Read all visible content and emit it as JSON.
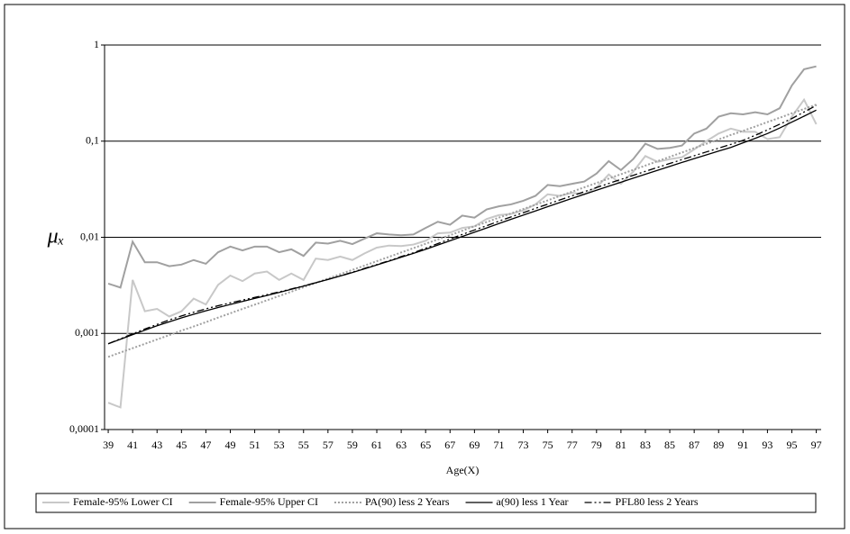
{
  "chart_data": {
    "type": "line",
    "x_label": "Age(X)",
    "y_label": "μₓ",
    "yscale": "log",
    "grid": true,
    "legend": "bottom",
    "x": [
      39,
      40,
      41,
      42,
      43,
      44,
      45,
      46,
      47,
      48,
      49,
      50,
      51,
      52,
      53,
      54,
      55,
      56,
      57,
      58,
      59,
      60,
      61,
      62,
      63,
      64,
      65,
      66,
      67,
      68,
      69,
      70,
      71,
      72,
      73,
      74,
      75,
      76,
      77,
      78,
      79,
      80,
      81,
      82,
      83,
      84,
      85,
      86,
      87,
      88,
      89,
      90,
      91,
      92,
      93,
      94,
      95,
      96,
      97
    ],
    "xlim": [
      38.7,
      97.4
    ],
    "xticks": [
      39,
      41,
      43,
      45,
      47,
      49,
      51,
      53,
      55,
      57,
      59,
      61,
      63,
      65,
      67,
      69,
      71,
      73,
      75,
      77,
      79,
      81,
      83,
      85,
      87,
      89,
      91,
      93,
      95,
      97
    ],
    "ylim": [
      0.0001,
      1
    ],
    "yticks": [
      {
        "value": 0.0001,
        "label": "0,0001"
      },
      {
        "value": 0.001,
        "label": "0,001"
      },
      {
        "value": 0.01,
        "label": "0,01"
      },
      {
        "value": 0.1,
        "label": "0,1"
      },
      1
    ],
    "series": [
      {
        "name": "Female-95% Lower CI",
        "color": "#c8c8c8",
        "dash": "solid",
        "values": [
          0.00019,
          0.00017,
          0.0036,
          0.0017,
          0.0018,
          0.0015,
          0.0017,
          0.0023,
          0.002,
          0.0032,
          0.004,
          0.0035,
          0.0042,
          0.0044,
          0.0036,
          0.0042,
          0.0036,
          0.006,
          0.0058,
          0.0063,
          0.0058,
          0.0068,
          0.0078,
          0.0082,
          0.0081,
          0.0084,
          0.0092,
          0.011,
          0.0112,
          0.0125,
          0.013,
          0.0155,
          0.017,
          0.0175,
          0.019,
          0.022,
          0.028,
          0.027,
          0.029,
          0.028,
          0.033,
          0.045,
          0.036,
          0.048,
          0.07,
          0.061,
          0.065,
          0.068,
          0.082,
          0.1,
          0.12,
          0.135,
          0.125,
          0.125,
          0.105,
          0.11,
          0.18,
          0.27,
          0.15
        ]
      },
      {
        "name": "Female-95% Upper CI",
        "color": "#a0a0a0",
        "dash": "solid",
        "values": [
          0.0033,
          0.003,
          0.009,
          0.0055,
          0.0055,
          0.005,
          0.0052,
          0.0058,
          0.0053,
          0.007,
          0.008,
          0.0073,
          0.008,
          0.008,
          0.007,
          0.0075,
          0.0064,
          0.0088,
          0.0086,
          0.0092,
          0.0085,
          0.0097,
          0.011,
          0.0107,
          0.0105,
          0.0107,
          0.0125,
          0.0145,
          0.0135,
          0.0168,
          0.016,
          0.0195,
          0.021,
          0.022,
          0.024,
          0.027,
          0.035,
          0.034,
          0.036,
          0.038,
          0.046,
          0.062,
          0.05,
          0.065,
          0.094,
          0.083,
          0.085,
          0.09,
          0.12,
          0.135,
          0.18,
          0.195,
          0.19,
          0.2,
          0.19,
          0.22,
          0.38,
          0.56,
          0.6
        ]
      },
      {
        "name": "PA(90) less 2 Years",
        "color": "#a0a0a0",
        "dash": "dotted",
        "values": [
          0.00057,
          0.000633,
          0.000702,
          0.000779,
          0.000865,
          0.00096,
          0.00107,
          0.00118,
          0.00131,
          0.00146,
          0.00162,
          0.0018,
          0.00199,
          0.00221,
          0.00245,
          0.00272,
          0.00302,
          0.00335,
          0.00372,
          0.00413,
          0.00458,
          0.00508,
          0.00564,
          0.00626,
          0.00695,
          0.00771,
          0.00856,
          0.0095,
          0.0105,
          0.0117,
          0.013,
          0.0144,
          0.016,
          0.0177,
          0.0197,
          0.0218,
          0.0242,
          0.0269,
          0.0298,
          0.0331,
          0.0367,
          0.0408,
          0.0453,
          0.0502,
          0.0557,
          0.0619,
          0.0687,
          0.0762,
          0.0846,
          0.0939,
          0.104,
          0.116,
          0.128,
          0.142,
          0.158,
          0.175,
          0.195,
          0.216,
          0.24
        ]
      },
      {
        "name": "a(90) less 1 Year",
        "color": "#000000",
        "dash": "solid",
        "values": [
          0.00078,
          0.00087,
          0.00097,
          0.00108,
          0.0012,
          0.00132,
          0.00145,
          0.00158,
          0.00172,
          0.00186,
          0.002,
          0.00215,
          0.00231,
          0.00248,
          0.00267,
          0.00288,
          0.0031,
          0.00336,
          0.00364,
          0.00395,
          0.0043,
          0.0047,
          0.00515,
          0.00565,
          0.0062,
          0.0068,
          0.0075,
          0.0083,
          0.0092,
          0.0102,
          0.0113,
          0.0125,
          0.0139,
          0.0154,
          0.017,
          0.0188,
          0.0208,
          0.023,
          0.0254,
          0.028,
          0.0309,
          0.034,
          0.0374,
          0.0412,
          0.0453,
          0.0498,
          0.0547,
          0.06,
          0.0658,
          0.072,
          0.0788,
          0.086,
          0.096,
          0.107,
          0.12,
          0.137,
          0.158,
          0.182,
          0.21
        ]
      },
      {
        "name": "PFL80 less 2 Years",
        "color": "#000000",
        "dash": "dash-dot-dot",
        "values": [
          0.00078,
          0.00088,
          0.00099,
          0.00111,
          0.00124,
          0.00138,
          0.00152,
          0.00166,
          0.0018,
          0.00194,
          0.00208,
          0.00222,
          0.00237,
          0.00253,
          0.0027,
          0.0029,
          0.00312,
          0.00337,
          0.00365,
          0.00397,
          0.00433,
          0.00475,
          0.0052,
          0.0057,
          0.0063,
          0.0069,
          0.0077,
          0.0086,
          0.0096,
          0.0107,
          0.0119,
          0.0132,
          0.0147,
          0.0163,
          0.018,
          0.02,
          0.0221,
          0.0245,
          0.027,
          0.0298,
          0.0329,
          0.0363,
          0.04,
          0.0441,
          0.0485,
          0.0533,
          0.0586,
          0.0643,
          0.0705,
          0.0773,
          0.0846,
          0.0925,
          0.102,
          0.115,
          0.131,
          0.15,
          0.172,
          0.201,
          0.235
        ]
      }
    ]
  }
}
